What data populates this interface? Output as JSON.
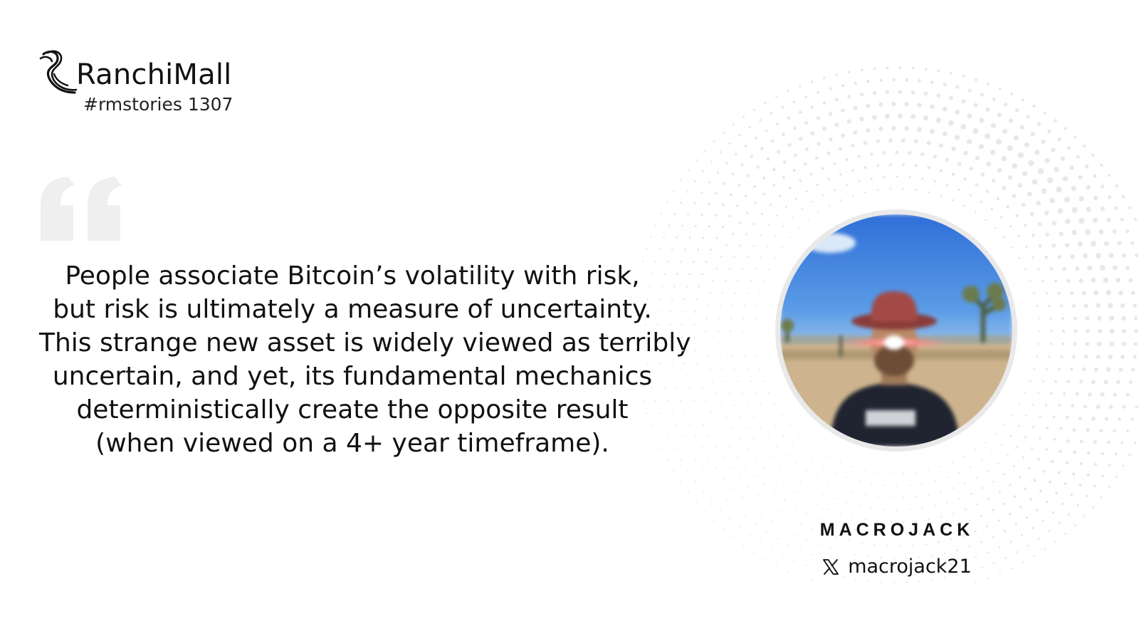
{
  "brand": {
    "name": "RanchiMall",
    "tag": "#rmstories 1307",
    "logo_icon": "ranchimall-horse-logo"
  },
  "quote": {
    "icon": "quotation-mark-icon",
    "lines": [
      "People associate Bitcoin’s volatility with risk,",
      "but risk is ultimately a measure of uncertainty.",
      "This strange new asset is widely viewed as terribly",
      "uncertain, and yet, its fundamental mechanics",
      "deterministically create the opposite result",
      "(when viewed on a 4+ year timeframe)."
    ]
  },
  "author": {
    "name": "MACROJACK",
    "handle": "macrojack21",
    "handle_icon": "x-logo-icon"
  },
  "colors": {
    "text": "#111111",
    "quote_mark": "#efefef",
    "dots": "#e8e8e8",
    "avatar_ring": "#e9e9e9"
  }
}
